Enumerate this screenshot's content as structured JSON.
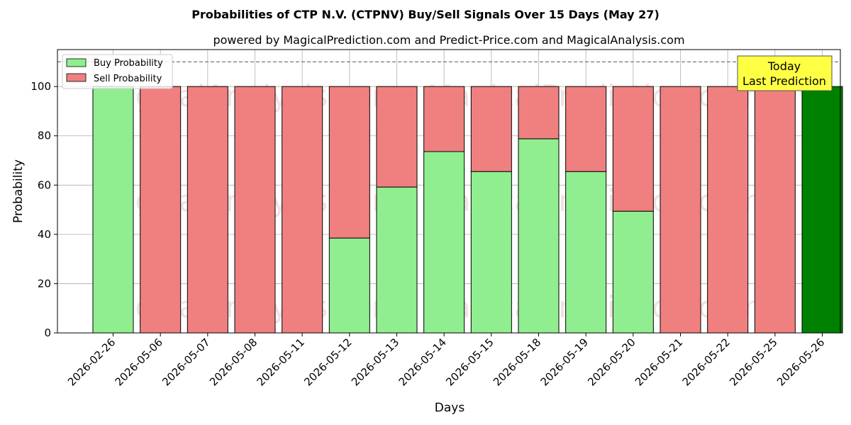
{
  "chart_data": {
    "type": "bar",
    "stacked": true,
    "title": "Probabilities of CTP N.V. (CTPNV) Buy/Sell Signals Over 15 Days (May 27)",
    "subtitle": "powered by MagicalPrediction.com and Predict-Price.com and MagicalAnalysis.com",
    "xlabel": "Days",
    "ylabel": "Probability",
    "ylim": [
      0,
      115
    ],
    "yticks": [
      0,
      20,
      40,
      60,
      80,
      100
    ],
    "grid": true,
    "legend_position": "top-left",
    "reference_line": 110,
    "categories": [
      "2026-02-26",
      "2026-05-06",
      "2026-05-07",
      "2026-05-08",
      "2026-05-11",
      "2026-05-12",
      "2026-05-13",
      "2026-05-14",
      "2026-05-15",
      "2026-05-18",
      "2026-05-19",
      "2026-05-20",
      "2026-05-21",
      "2026-05-22",
      "2026-05-25",
      "2026-05-26"
    ],
    "series": [
      {
        "name": "Buy Probability",
        "color": "#90ee90",
        "values": [
          100,
          0,
          0,
          0,
          0,
          38.5,
          59.2,
          73.6,
          65.5,
          78.8,
          65.5,
          49.4,
          0,
          0,
          0,
          100
        ]
      },
      {
        "name": "Sell Probability",
        "color": "#f08080",
        "values": [
          0,
          100,
          100,
          100,
          100,
          61.5,
          40.8,
          26.4,
          34.5,
          21.2,
          34.5,
          50.6,
          100,
          100,
          100,
          0
        ]
      }
    ],
    "highlight": {
      "index": 15,
      "color": "#008000"
    },
    "annotation": {
      "line1": "Today",
      "line2": "Last Prediction"
    },
    "watermarks": [
      "MagicalAnalysis.com",
      "MagicalPrediction.com"
    ]
  }
}
